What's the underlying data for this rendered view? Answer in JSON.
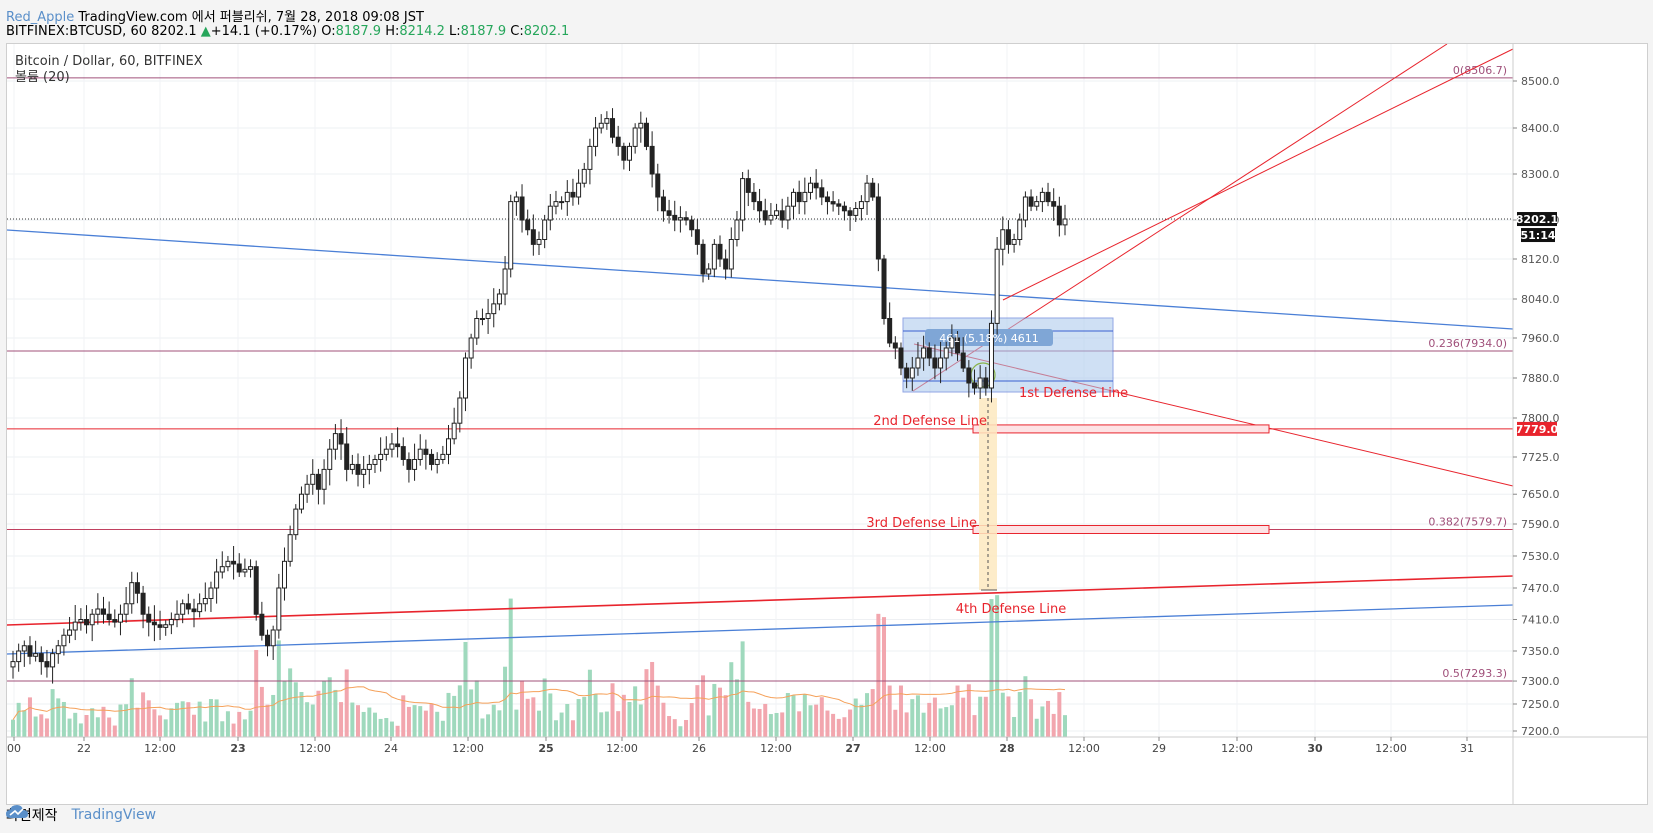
{
  "header": {
    "author": "Red_Apple",
    "published": " TradingView.com 에서 퍼블리쉬, 7월 28, 2018 09:08 JST",
    "symbol_line": "BITFINEX:BTCUSD, 60 8202.1",
    "change_arrow": "▲",
    "change": "+14.1 (+0.17%)",
    "o_label": "O:",
    "o_value": "8187.9",
    "h_label": "H:",
    "h_value": "8214.2",
    "l_label": "L:",
    "l_value": "8187.9",
    "c_label": "C:",
    "c_value": "8202.1"
  },
  "footer": {
    "made_with": "화면제작",
    "brand": "TradingView"
  },
  "chart_data": {
    "type": "candlestick",
    "title": "Bitcoin / Dollar, 60, BITFINEX",
    "volume_label": "볼륨 (20)",
    "ylim": [
      7200,
      8550
    ],
    "y_ticks": [
      7200,
      7250,
      7293.3,
      7350,
      7410,
      7470,
      7530,
      7590,
      7650,
      7725,
      7800,
      7880,
      7960,
      8040,
      8120,
      8200,
      8300,
      8400,
      8500
    ],
    "y_tick_labels": [
      "7200.0",
      "7250.0",
      "7300.0",
      "7350.0",
      "7410.0",
      "7470.0",
      "7530.0",
      "7590.0",
      "7650.0",
      "7725.0",
      "7800.0",
      "7880.0",
      "7960.0",
      "8040.0",
      "8120.0",
      "8200.0",
      "8300.0",
      "8400.0",
      "8500.0"
    ],
    "x_ticks": [
      "00",
      "22",
      "12:00",
      "23",
      "12:00",
      "24",
      "12:00",
      "25",
      "12:00",
      "26",
      "12:00",
      "27",
      "12:00",
      "28",
      "12:00",
      "29",
      "12:00",
      "30",
      "12:00",
      "31"
    ],
    "x_tick_bold": [
      false,
      false,
      false,
      true,
      false,
      false,
      false,
      true,
      false,
      false,
      false,
      true,
      false,
      true,
      false,
      false,
      false,
      true,
      false,
      false
    ],
    "last_price": "8202.1",
    "last_price_value": 8202.1,
    "countdown": "51:14",
    "level_7779_label": "7779.0",
    "fib": [
      {
        "label": "0(8506.7)",
        "value": 8506.7
      },
      {
        "label": "0.236(7934.0)",
        "value": 7934.0
      },
      {
        "label": "0.382(7579.7)",
        "value": 7579.7
      },
      {
        "label": "0.5(7293.3)",
        "value": 7293.3
      }
    ],
    "defense_lines": [
      {
        "label": "1st Defense Line"
      },
      {
        "label": "2nd Defense Line",
        "value": 7779.0
      },
      {
        "label": "3rd Defense Line",
        "value": 7579.7
      },
      {
        "label": "4th Defense Line"
      }
    ],
    "measure_label": "461 (5.18%) 4611",
    "closes": [
      7330,
      7350,
      7360,
      7340,
      7345,
      7330,
      7320,
      7345,
      7360,
      7380,
      7390,
      7405,
      7410,
      7400,
      7420,
      7430,
      7420,
      7410,
      7405,
      7420,
      7440,
      7480,
      7460,
      7420,
      7405,
      7400,
      7395,
      7400,
      7410,
      7420,
      7440,
      7430,
      7425,
      7440,
      7450,
      7470,
      7500,
      7510,
      7520,
      7515,
      7500,
      7505,
      7510,
      7420,
      7380,
      7360,
      7390,
      7470,
      7520,
      7570,
      7620,
      7650,
      7670,
      7690,
      7660,
      7700,
      7740,
      7770,
      7750,
      7700,
      7710,
      7690,
      7700,
      7710,
      7720,
      7730,
      7740,
      7750,
      7745,
      7720,
      7700,
      7720,
      7740,
      7730,
      7710,
      7720,
      7730,
      7760,
      7790,
      7840,
      7920,
      7960,
      8000,
      8000,
      8010,
      8030,
      8050,
      8100,
      8240,
      8250,
      8200,
      8180,
      8150,
      8160,
      8200,
      8230,
      8240,
      8240,
      8260,
      8250,
      8280,
      8310,
      8360,
      8400,
      8410,
      8420,
      8380,
      8360,
      8330,
      8360,
      8400,
      8410,
      8360,
      8300,
      8250,
      8220,
      8210,
      8200,
      8205,
      8200,
      8180,
      8150,
      8090,
      8100,
      8150,
      8120,
      8100,
      8160,
      8200,
      8290,
      8260,
      8240,
      8220,
      8200,
      8210,
      8220,
      8200,
      8230,
      8260,
      8240,
      8260,
      8280,
      8270,
      8250,
      8240,
      8235,
      8230,
      8220,
      8210,
      8225,
      8240,
      8280,
      8250,
      8120,
      8000,
      7950,
      7940,
      7900,
      7880,
      7900,
      7920,
      7940,
      7920,
      7900,
      7920,
      7940,
      7960,
      7930,
      7900,
      7870,
      7860,
      7880,
      7860,
      7990,
      8140,
      8180,
      8150,
      8160,
      8200,
      8250,
      8230,
      8240,
      8260,
      8240,
      8230,
      8190,
      8202.1
    ]
  }
}
